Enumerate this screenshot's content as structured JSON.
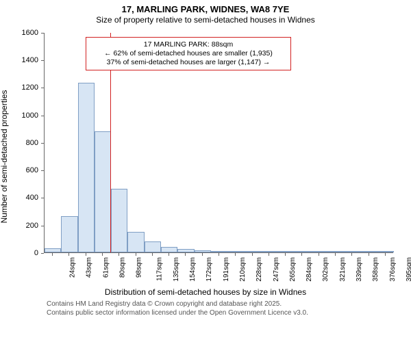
{
  "title": {
    "line1": "17, MARLING PARK, WIDNES, WA8 7YE",
    "line2": "Size of property relative to semi-detached houses in Widnes"
  },
  "chart": {
    "type": "histogram",
    "y": {
      "label": "Number of semi-detached properties",
      "min": 0,
      "max": 1600,
      "ticks": [
        0,
        200,
        400,
        600,
        800,
        1000,
        1200,
        1400,
        1600
      ]
    },
    "x": {
      "label": "Distribution of semi-detached houses by size in Widnes",
      "categories": [
        "24sqm",
        "43sqm",
        "61sqm",
        "80sqm",
        "98sqm",
        "117sqm",
        "135sqm",
        "154sqm",
        "172sqm",
        "191sqm",
        "210sqm",
        "228sqm",
        "247sqm",
        "265sqm",
        "284sqm",
        "302sqm",
        "321sqm",
        "339sqm",
        "358sqm",
        "376sqm",
        "395sqm"
      ],
      "rotation_deg": -90,
      "label_fontsize": 10
    },
    "bars": {
      "values": [
        30,
        265,
        1230,
        880,
        460,
        150,
        80,
        40,
        25,
        15,
        10,
        8,
        5,
        3,
        2,
        2,
        2,
        2,
        1,
        1,
        1
      ],
      "fill_color": "#d7e5f4",
      "border_color": "#7f9ec4",
      "border_width": 1,
      "width_ratio": 1.0
    },
    "reference_line": {
      "color": "#d21f1f",
      "width": 1,
      "x_value_sqm": 88
    },
    "annotation": {
      "border_color": "#d21f1f",
      "border_width": 1,
      "background": "#ffffff",
      "lines": [
        "17 MARLING PARK: 88sqm",
        "← 62% of semi-detached houses are smaller (1,935)",
        "37% of semi-detached houses are larger (1,147) →"
      ]
    },
    "background_color": "#ffffff",
    "axis_color": "#666666",
    "tick_fontsize": 11
  },
  "footer": {
    "line1": "Contains HM Land Registry data © Crown copyright and database right 2025.",
    "line2": "Contains public sector information licensed under the Open Government Licence v3.0."
  }
}
